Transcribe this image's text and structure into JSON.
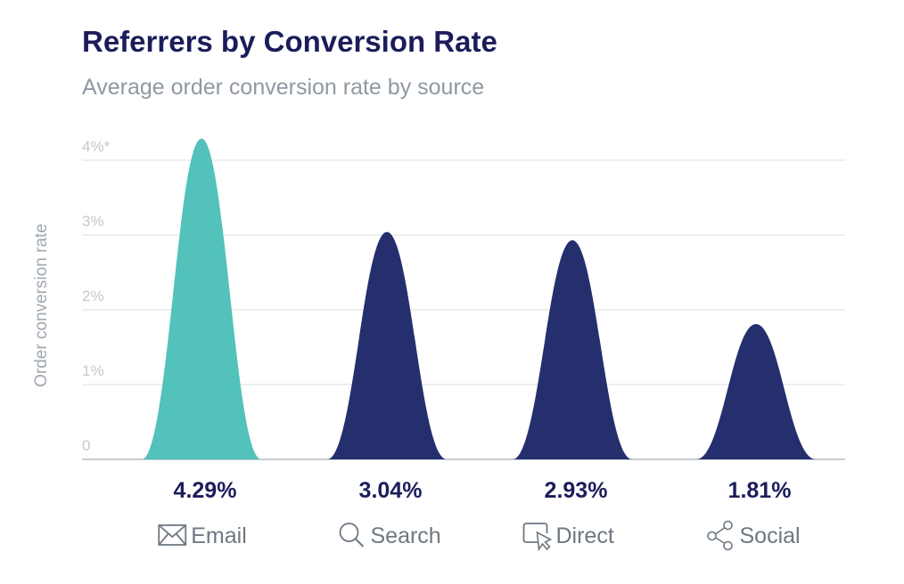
{
  "chart_data": {
    "type": "area",
    "title": "Referrers by Conversion Rate",
    "subtitle": "Average order conversion rate by source",
    "ylabel": "Order conversion rate",
    "ylim": [
      0,
      4
    ],
    "yticks": [
      {
        "value": 0,
        "label": "0"
      },
      {
        "value": 1,
        "label": "1%"
      },
      {
        "value": 2,
        "label": "2%"
      },
      {
        "value": 3,
        "label": "3%"
      },
      {
        "value": 4,
        "label": "4%*"
      }
    ],
    "grid": true,
    "categories": [
      {
        "name": "Email",
        "icon": "envelope-icon",
        "value": 4.29,
        "label": "4.29%",
        "color": "#52c2ba"
      },
      {
        "name": "Search",
        "icon": "search-icon",
        "value": 3.04,
        "label": "3.04%",
        "color": "#252f6e"
      },
      {
        "name": "Direct",
        "icon": "cursor-click-icon",
        "value": 2.93,
        "label": "2.93%",
        "color": "#252f6e"
      },
      {
        "name": "Social",
        "icon": "share-icon",
        "value": 1.81,
        "label": "1.81%",
        "color": "#252f6e"
      }
    ]
  }
}
